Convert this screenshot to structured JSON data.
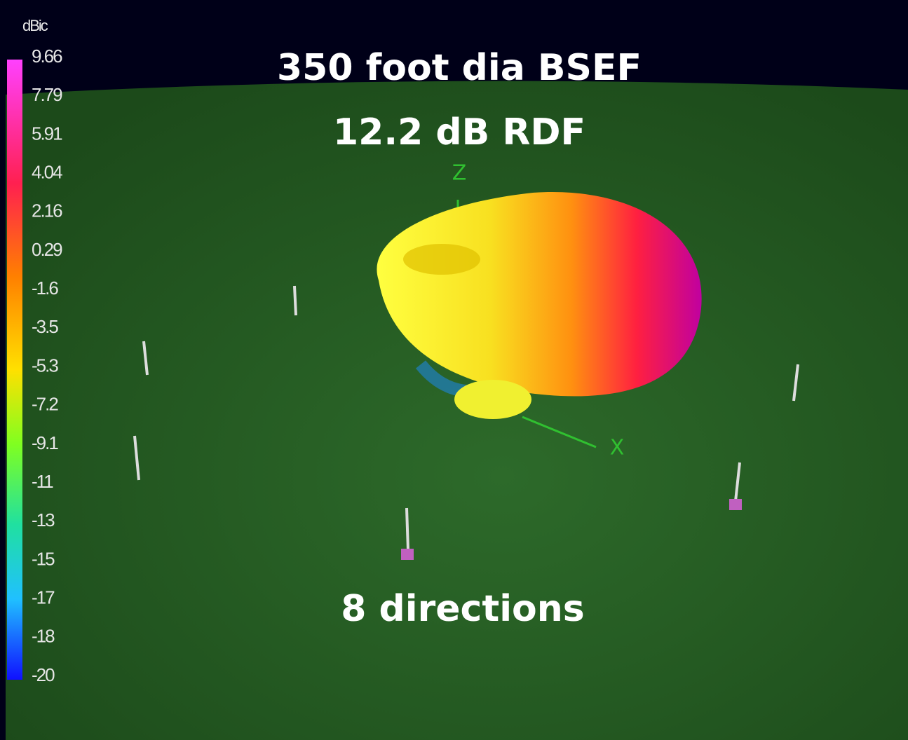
{
  "title": "350 foot dia BSEF",
  "subtitle": "12.2 dB RDF",
  "caption": "8 directions",
  "color_scale": {
    "unit": "dBic",
    "labels": [
      "9.66",
      "7.79",
      "5.91",
      "4.04",
      "2.16",
      "0.29",
      "-1.6",
      "-3.5",
      "-5.3",
      "-7.2",
      "-9.1",
      "-11",
      "-13",
      "-15",
      "-17",
      "-18",
      "-20"
    ]
  },
  "axes": {
    "z": "Z",
    "x": "X"
  }
}
